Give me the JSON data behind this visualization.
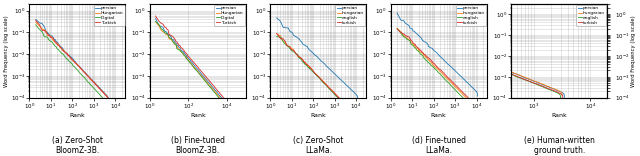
{
  "subplots": [
    {
      "title": "(a) Zero-Shot\nBloomZ-3B."
    },
    {
      "title": "(b) Fine-tuned\nBloomZ-3B."
    },
    {
      "title": "(c) Zero-Shot\nLLaMa."
    },
    {
      "title": "(d) Fine-tuned\nLLaMa."
    },
    {
      "title": "(e) Human-written\nground truth."
    }
  ],
  "legend_names_ab": [
    "persian",
    "Hungarian",
    "Digital",
    "Turkish"
  ],
  "legend_names_cde": [
    "persian",
    "hungarian",
    "english",
    "turkish"
  ],
  "colors": [
    "#1f77b4",
    "#ff7f0e",
    "#2ca02c",
    "#d62728"
  ],
  "ylabel": "Word Frequency (log scale)",
  "xlabel": "Rank"
}
